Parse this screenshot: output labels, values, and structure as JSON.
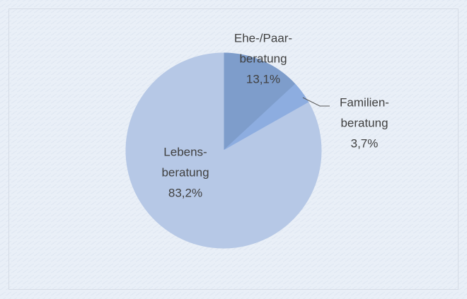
{
  "chart_data": {
    "type": "pie",
    "categories": [
      [
        "Ehe-/Paar-",
        "beratung"
      ],
      [
        "Familien-",
        "beratung"
      ],
      [
        "Lebens-",
        "beratung"
      ]
    ],
    "values": [
      13.1,
      3.7,
      83.2
    ],
    "value_labels": [
      "13,1%",
      "3,7%",
      "83,2%"
    ],
    "colors": [
      "#7e9dcb",
      "#8dade0",
      "#b6c8e6"
    ]
  }
}
